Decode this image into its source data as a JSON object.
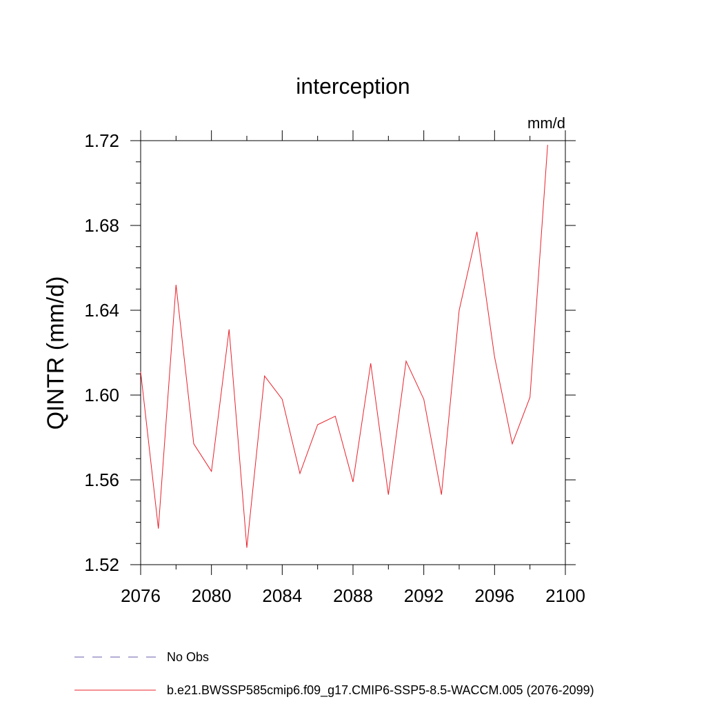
{
  "chart_data": {
    "type": "line",
    "title": "interception",
    "units_label": "mm/d",
    "ylabel": "QINTR  (mm/d)",
    "xlabel": "",
    "xlim": [
      2076,
      2100
    ],
    "ylim": [
      1.52,
      1.72
    ],
    "x_ticks": [
      2076,
      2080,
      2084,
      2088,
      2092,
      2096,
      2100
    ],
    "x_tick_labels": [
      "2076",
      "2080",
      "2084",
      "2088",
      "2092",
      "2096",
      "2100"
    ],
    "y_ticks": [
      1.52,
      1.56,
      1.6,
      1.64,
      1.68,
      1.72
    ],
    "y_tick_labels": [
      "1.52",
      "1.56",
      "1.60",
      "1.64",
      "1.68",
      "1.72"
    ],
    "series": [
      {
        "name": "b.e21.BWSSP585cmip6.f09_g17.CMIP6-SSP5-8.5-WACCM.005 (2076-2099)",
        "color": "#e8202a",
        "style": "solid",
        "x": [
          2076,
          2077,
          2078,
          2079,
          2080,
          2081,
          2082,
          2083,
          2084,
          2085,
          2086,
          2087,
          2088,
          2089,
          2090,
          2091,
          2092,
          2093,
          2094,
          2095,
          2096,
          2097,
          2098,
          2099
        ],
        "values": [
          1.611,
          1.537,
          1.652,
          1.577,
          1.564,
          1.631,
          1.528,
          1.609,
          1.598,
          1.563,
          1.586,
          1.59,
          1.559,
          1.615,
          1.553,
          1.616,
          1.598,
          1.553,
          1.64,
          1.677,
          1.618,
          1.577,
          1.599,
          1.718
        ]
      }
    ],
    "legend": [
      {
        "label": "No Obs",
        "color": "#6a5aa8",
        "style": "dashed"
      },
      {
        "label": "b.e21.BWSSP585cmip6.f09_g17.CMIP6-SSP5-8.5-WACCM.005 (2076-2099)",
        "color": "#e8202a",
        "style": "solid"
      }
    ]
  }
}
